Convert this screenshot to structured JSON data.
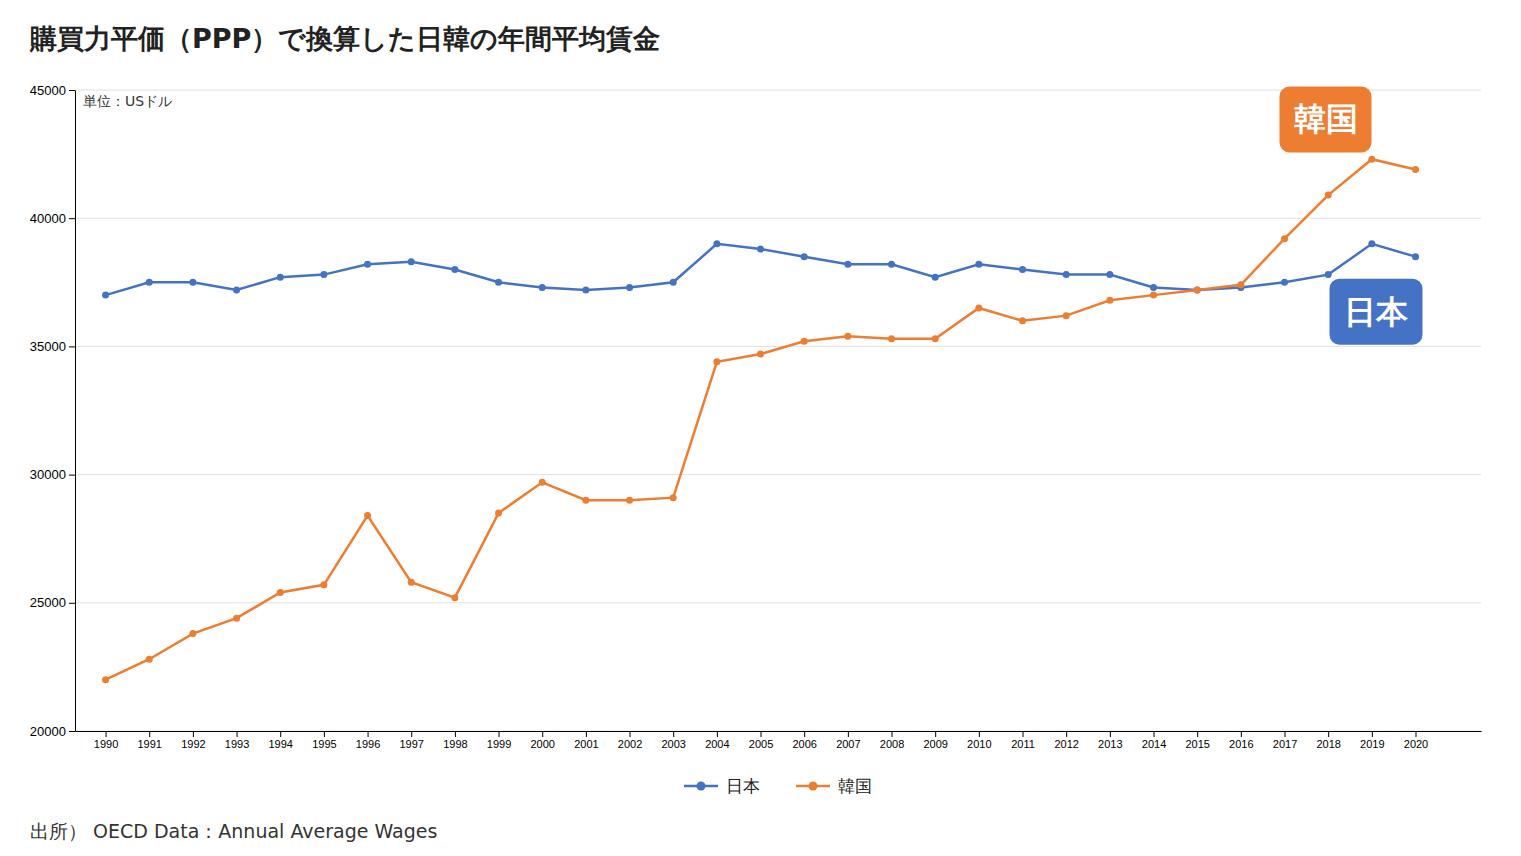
{
  "chart_data": {
    "type": "line",
    "title": "購買力平価（PPP）で換算した日韓の年間平均賃金",
    "subtitle": "単位：USドル",
    "source": "出所） OECD Data：Annual Average Wages",
    "x": [
      1990,
      1991,
      1992,
      1993,
      1994,
      1995,
      1996,
      1997,
      1998,
      1999,
      2000,
      2001,
      2002,
      2003,
      2004,
      2005,
      2006,
      2007,
      2008,
      2009,
      2010,
      2011,
      2012,
      2013,
      2014,
      2015,
      2016,
      2017,
      2018,
      2019,
      2020
    ],
    "series": [
      {
        "name": "日本",
        "color": "#4472c4",
        "marker": "circle",
        "line_style": "solid",
        "values": [
          37000,
          37500,
          37500,
          37200,
          37700,
          37800,
          38200,
          38300,
          38000,
          37500,
          37300,
          37200,
          37300,
          37500,
          39000,
          38800,
          38500,
          38200,
          38200,
          37700,
          38200,
          38000,
          37800,
          37800,
          37300,
          37200,
          37300,
          37500,
          37800,
          39000,
          38500
        ]
      },
      {
        "name": "韓国",
        "color": "#ed7d31",
        "marker": "circle",
        "line_style": "solid",
        "values": [
          22000,
          22800,
          23800,
          24400,
          25400,
          25700,
          28400,
          25800,
          25200,
          28500,
          29700,
          29000,
          29000,
          29100,
          34400,
          34700,
          35200,
          35400,
          35300,
          35300,
          36500,
          36000,
          36200,
          36800,
          37000,
          37200,
          37400,
          39200,
          40900,
          42300,
          41900
        ]
      }
    ],
    "xlim": [
      1989.3,
      2021.5
    ],
    "xticks": [
      1990,
      1991,
      1992,
      1993,
      1994,
      1995,
      1996,
      1997,
      1998,
      1999,
      2000,
      2001,
      2002,
      2003,
      2004,
      2005,
      2006,
      2007,
      2008,
      2009,
      2010,
      2011,
      2012,
      2013,
      2014,
      2015,
      2016,
      2017,
      2018,
      2019,
      2020
    ],
    "ylim": [
      20000,
      45000
    ],
    "yticks": [
      20000,
      25000,
      30000,
      35000,
      40000,
      45000
    ],
    "grid": true,
    "legend": "bottom",
    "annotations": [
      {
        "text": "韓国",
        "color": "#ed7d31"
      },
      {
        "text": "日本",
        "color": "#4472c4"
      }
    ]
  }
}
